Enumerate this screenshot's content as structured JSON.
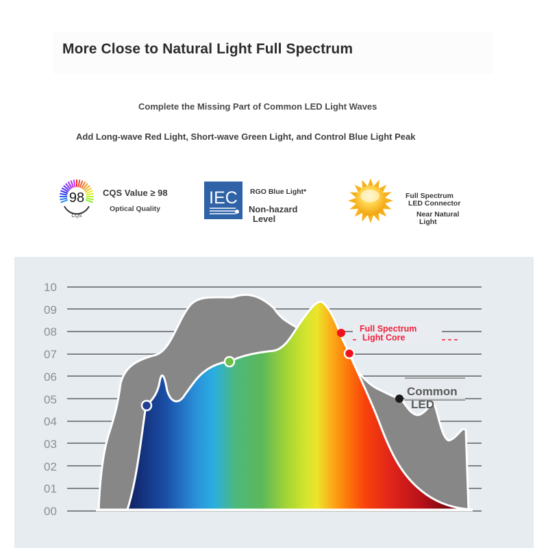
{
  "header": {
    "title": "More Close to Natural Light Full Spectrum",
    "subtitle1": "Complete the Missing Part of Common LED Light Waves",
    "subtitle2": "Add Long-wave Red Light, Short-wave Green Light, and Control Blue Light Peak"
  },
  "features": [
    {
      "icon": "cqs-98-badge-icon",
      "badge_number": "98",
      "badge_caption": "CQS",
      "line1": "CQS Value ≥ 98",
      "line2": "Optical Quality"
    },
    {
      "icon": "iec-logo-icon",
      "logo_text": "IEC",
      "line1": "RGO Blue Light*",
      "line2": "Non-hazard",
      "line3": "Level"
    },
    {
      "icon": "sun-icon",
      "line1": "Full Spectrum",
      "line2": "LED Connector",
      "line3": "Near Natural",
      "line4": "Light"
    }
  ],
  "colors": {
    "panel_bg": "#e7ecf0",
    "gridline": "#7a7d80",
    "common_led_fill": "#878787",
    "annotation_red": "#f0203c",
    "annotation_gray": "#5a5a5a"
  },
  "chart_data": {
    "type": "area",
    "title": "",
    "xlabel": "",
    "ylabel": "",
    "yticks": [
      "10",
      "09",
      "08",
      "07",
      "06",
      "05",
      "04",
      "03",
      "02",
      "01",
      "00"
    ],
    "ylim": [
      0,
      10
    ],
    "grid": true,
    "legend": "annotations",
    "x_description": "wavelength (violet/blue → red), unlabeled",
    "series": [
      {
        "name": "Common LED",
        "color": "#878787",
        "x": [
          0,
          0.05,
          0.1,
          0.2,
          0.25,
          0.3,
          0.35,
          0.4,
          0.45,
          0.5,
          0.52,
          0.55,
          0.6,
          0.62,
          0.65,
          0.7,
          0.75,
          0.8,
          0.85,
          0.9,
          0.95,
          1.0
        ],
        "values": [
          0,
          3.2,
          6.0,
          7.0,
          9.0,
          9.4,
          9.5,
          9.6,
          8.8,
          8.5,
          8.0,
          7.6,
          7.0,
          6.0,
          5.3,
          5.0,
          4.2,
          5.0,
          4.0,
          3.2,
          3.6,
          0
        ]
      },
      {
        "name": "Full Spectrum Light Core",
        "color": "gradient",
        "x": [
          0.1,
          0.13,
          0.16,
          0.18,
          0.2,
          0.25,
          0.3,
          0.35,
          0.4,
          0.45,
          0.5,
          0.55,
          0.6,
          0.65,
          0.7,
          0.75,
          0.8,
          0.85,
          0.9
        ],
        "values": [
          0,
          4.7,
          5.2,
          6.0,
          4.8,
          5.2,
          6.6,
          7.0,
          7.2,
          8.8,
          9.4,
          8.4,
          6.9,
          4.8,
          3.0,
          1.6,
          0.8,
          0.3,
          0
        ]
      }
    ],
    "markers": [
      {
        "label": "blue point",
        "color": "#1f3f91",
        "y": 4.7
      },
      {
        "label": "green point",
        "color": "#6dbf45",
        "y": 6.6
      },
      {
        "label": "Full Spectrum Light Core",
        "color": "#f0101e",
        "y": 8.0
      },
      {
        "label": "red point",
        "color": "#f0101e",
        "y": 7.0
      },
      {
        "label": "Common LED",
        "color": "#1a1a1a",
        "y": 5.0
      }
    ],
    "annotations": [
      {
        "text_line1": "Full Spectrum",
        "text_line2": "Light Core",
        "color": "#f0203c"
      },
      {
        "text_line1": "Common",
        "text_line2": "LED",
        "color": "#5a5a5a"
      }
    ]
  }
}
